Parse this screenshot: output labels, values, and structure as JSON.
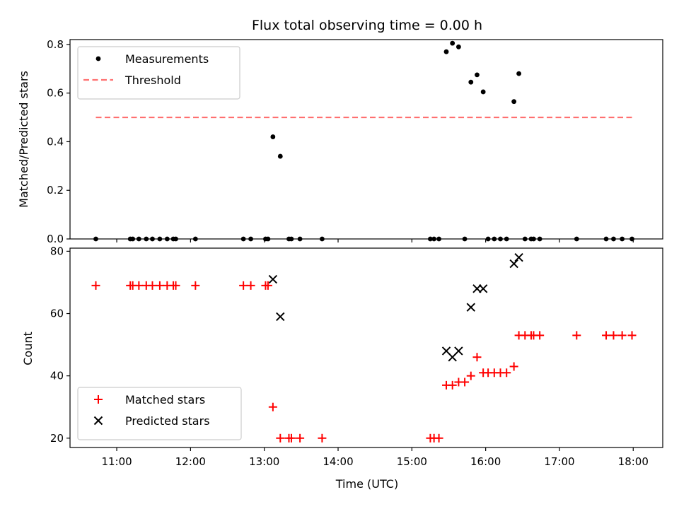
{
  "chart_data": [
    {
      "type": "scatter",
      "title": "Flux total observing time = 0.00 h",
      "xlabel": "",
      "ylabel": "Matched/Predicted stars",
      "xlim": [
        "10:22",
        "18:24"
      ],
      "ylim": [
        0,
        0.82
      ],
      "yticks": [
        "0.0",
        "0.2",
        "0.4",
        "0.6",
        "0.8"
      ],
      "legend_position": "upper-left",
      "series": [
        {
          "name": "Measurements",
          "marker": "dot",
          "color": "#000000",
          "x": [
            "10:43",
            "11:11",
            "11:13",
            "11:18",
            "11:24",
            "11:29",
            "11:35",
            "11:41",
            "11:46",
            "11:48",
            "12:04",
            "12:43",
            "12:49",
            "13:01",
            "13:03",
            "13:07",
            "13:13",
            "13:20",
            "13:22",
            "13:29",
            "13:47",
            "15:15",
            "15:18",
            "15:22",
            "15:28",
            "15:33",
            "15:38",
            "15:43",
            "15:48",
            "15:53",
            "15:58",
            "16:02",
            "16:07",
            "16:12",
            "16:17",
            "16:23",
            "16:27",
            "16:32",
            "16:37",
            "16:39",
            "16:44",
            "17:14",
            "17:38",
            "17:44",
            "17:51",
            "17:59"
          ],
          "y": [
            0,
            0,
            0,
            0,
            0,
            0,
            0,
            0,
            0,
            0,
            0,
            0,
            0,
            0,
            0,
            0.42,
            0.34,
            0,
            0,
            0,
            0,
            0,
            0,
            0,
            0.77,
            0.805,
            0.79,
            0,
            0.645,
            0.675,
            0.605,
            0,
            0,
            0,
            0,
            0.565,
            0.68,
            0,
            0,
            0,
            0,
            0,
            0,
            0,
            0,
            0
          ]
        },
        {
          "name": "Threshold",
          "style": "dashed-line",
          "color": "#ff7070",
          "x": [
            "10:43",
            "17:59"
          ],
          "y": [
            0.5,
            0.5
          ]
        }
      ]
    },
    {
      "type": "scatter",
      "title": "",
      "xlabel": "Time (UTC)",
      "ylabel": "Count",
      "xlim": [
        "10:22",
        "18:24"
      ],
      "ylim": [
        17,
        81
      ],
      "xticks": [
        "11:00",
        "12:00",
        "13:00",
        "14:00",
        "15:00",
        "16:00",
        "17:00",
        "18:00"
      ],
      "yticks": [
        "20",
        "40",
        "60",
        "80"
      ],
      "legend_position": "lower-left",
      "series": [
        {
          "name": "Matched stars",
          "marker": "plus",
          "color": "#ff0000",
          "x": [
            "10:43",
            "11:11",
            "11:13",
            "11:18",
            "11:24",
            "11:29",
            "11:35",
            "11:41",
            "11:46",
            "11:48",
            "12:04",
            "12:43",
            "12:49",
            "13:01",
            "13:03",
            "13:07",
            "13:13",
            "13:20",
            "13:22",
            "13:29",
            "13:47",
            "15:15",
            "15:18",
            "15:22",
            "15:28",
            "15:33",
            "15:38",
            "15:43",
            "15:48",
            "15:53",
            "15:58",
            "16:02",
            "16:07",
            "16:12",
            "16:17",
            "16:23",
            "16:27",
            "16:32",
            "16:37",
            "16:39",
            "16:44",
            "17:14",
            "17:38",
            "17:44",
            "17:51",
            "17:59"
          ],
          "y": [
            69,
            69,
            69,
            69,
            69,
            69,
            69,
            69,
            69,
            69,
            69,
            69,
            69,
            69,
            69,
            30,
            20,
            20,
            20,
            20,
            20,
            20,
            20,
            20,
            37,
            37,
            38,
            38,
            40,
            46,
            41,
            41,
            41,
            41,
            41,
            43,
            53,
            53,
            53,
            53,
            53,
            53,
            53,
            53,
            53,
            53
          ]
        },
        {
          "name": "Predicted stars",
          "marker": "x",
          "color": "#000000",
          "x": [
            "13:07",
            "13:13",
            "15:28",
            "15:33",
            "15:38",
            "15:48",
            "15:53",
            "15:58",
            "16:23",
            "16:27"
          ],
          "y": [
            71,
            59,
            48,
            46,
            48,
            62,
            68,
            68,
            76,
            78
          ]
        }
      ]
    }
  ]
}
